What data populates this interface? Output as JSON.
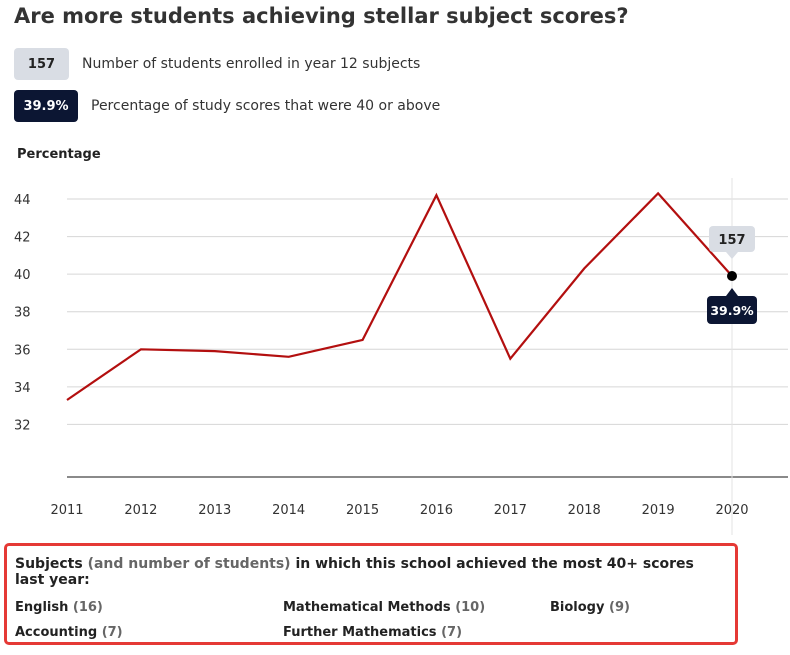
{
  "title": "Are more students achieving stellar subject scores?",
  "legend": {
    "students_value": "157",
    "students_label": "Number of students enrolled in year 12 subjects",
    "percent_value": "39.9%",
    "percent_label": "Percentage of study scores that were 40 or above"
  },
  "colors": {
    "line": "#b30f0f",
    "dark_pill": "#0c1633",
    "light_pill": "#d9dde4",
    "highlight_border": "#e53935"
  },
  "chart_data": {
    "type": "line",
    "ylabel": "Percentage",
    "xlabel": "",
    "x": [
      "2011",
      "2012",
      "2013",
      "2014",
      "2015",
      "2016",
      "2017",
      "2018",
      "2019",
      "2020"
    ],
    "y_ticks": [
      32,
      34,
      36,
      38,
      40,
      42,
      44
    ],
    "ylim": [
      29.2,
      45.2
    ],
    "grid": true,
    "series": [
      {
        "values": [
          33.3,
          36.0,
          35.9,
          35.6,
          36.5,
          44.2,
          35.5,
          40.3,
          44.3,
          39.9
        ]
      }
    ],
    "annotation": {
      "year": "2020",
      "students": "157",
      "percent": "39.9%"
    }
  },
  "subjects": {
    "heading_start": "Subjects",
    "heading_muted": "(and number of students)",
    "heading_end": "in which this school achieved the most 40+ scores last year:",
    "items": [
      {
        "name": "English",
        "count": "(16)"
      },
      {
        "name": "Mathematical Methods",
        "count": "(10)"
      },
      {
        "name": "Biology",
        "count": "(9)"
      },
      {
        "name": "Accounting",
        "count": "(7)"
      },
      {
        "name": "Further Mathematics",
        "count": "(7)"
      }
    ]
  }
}
